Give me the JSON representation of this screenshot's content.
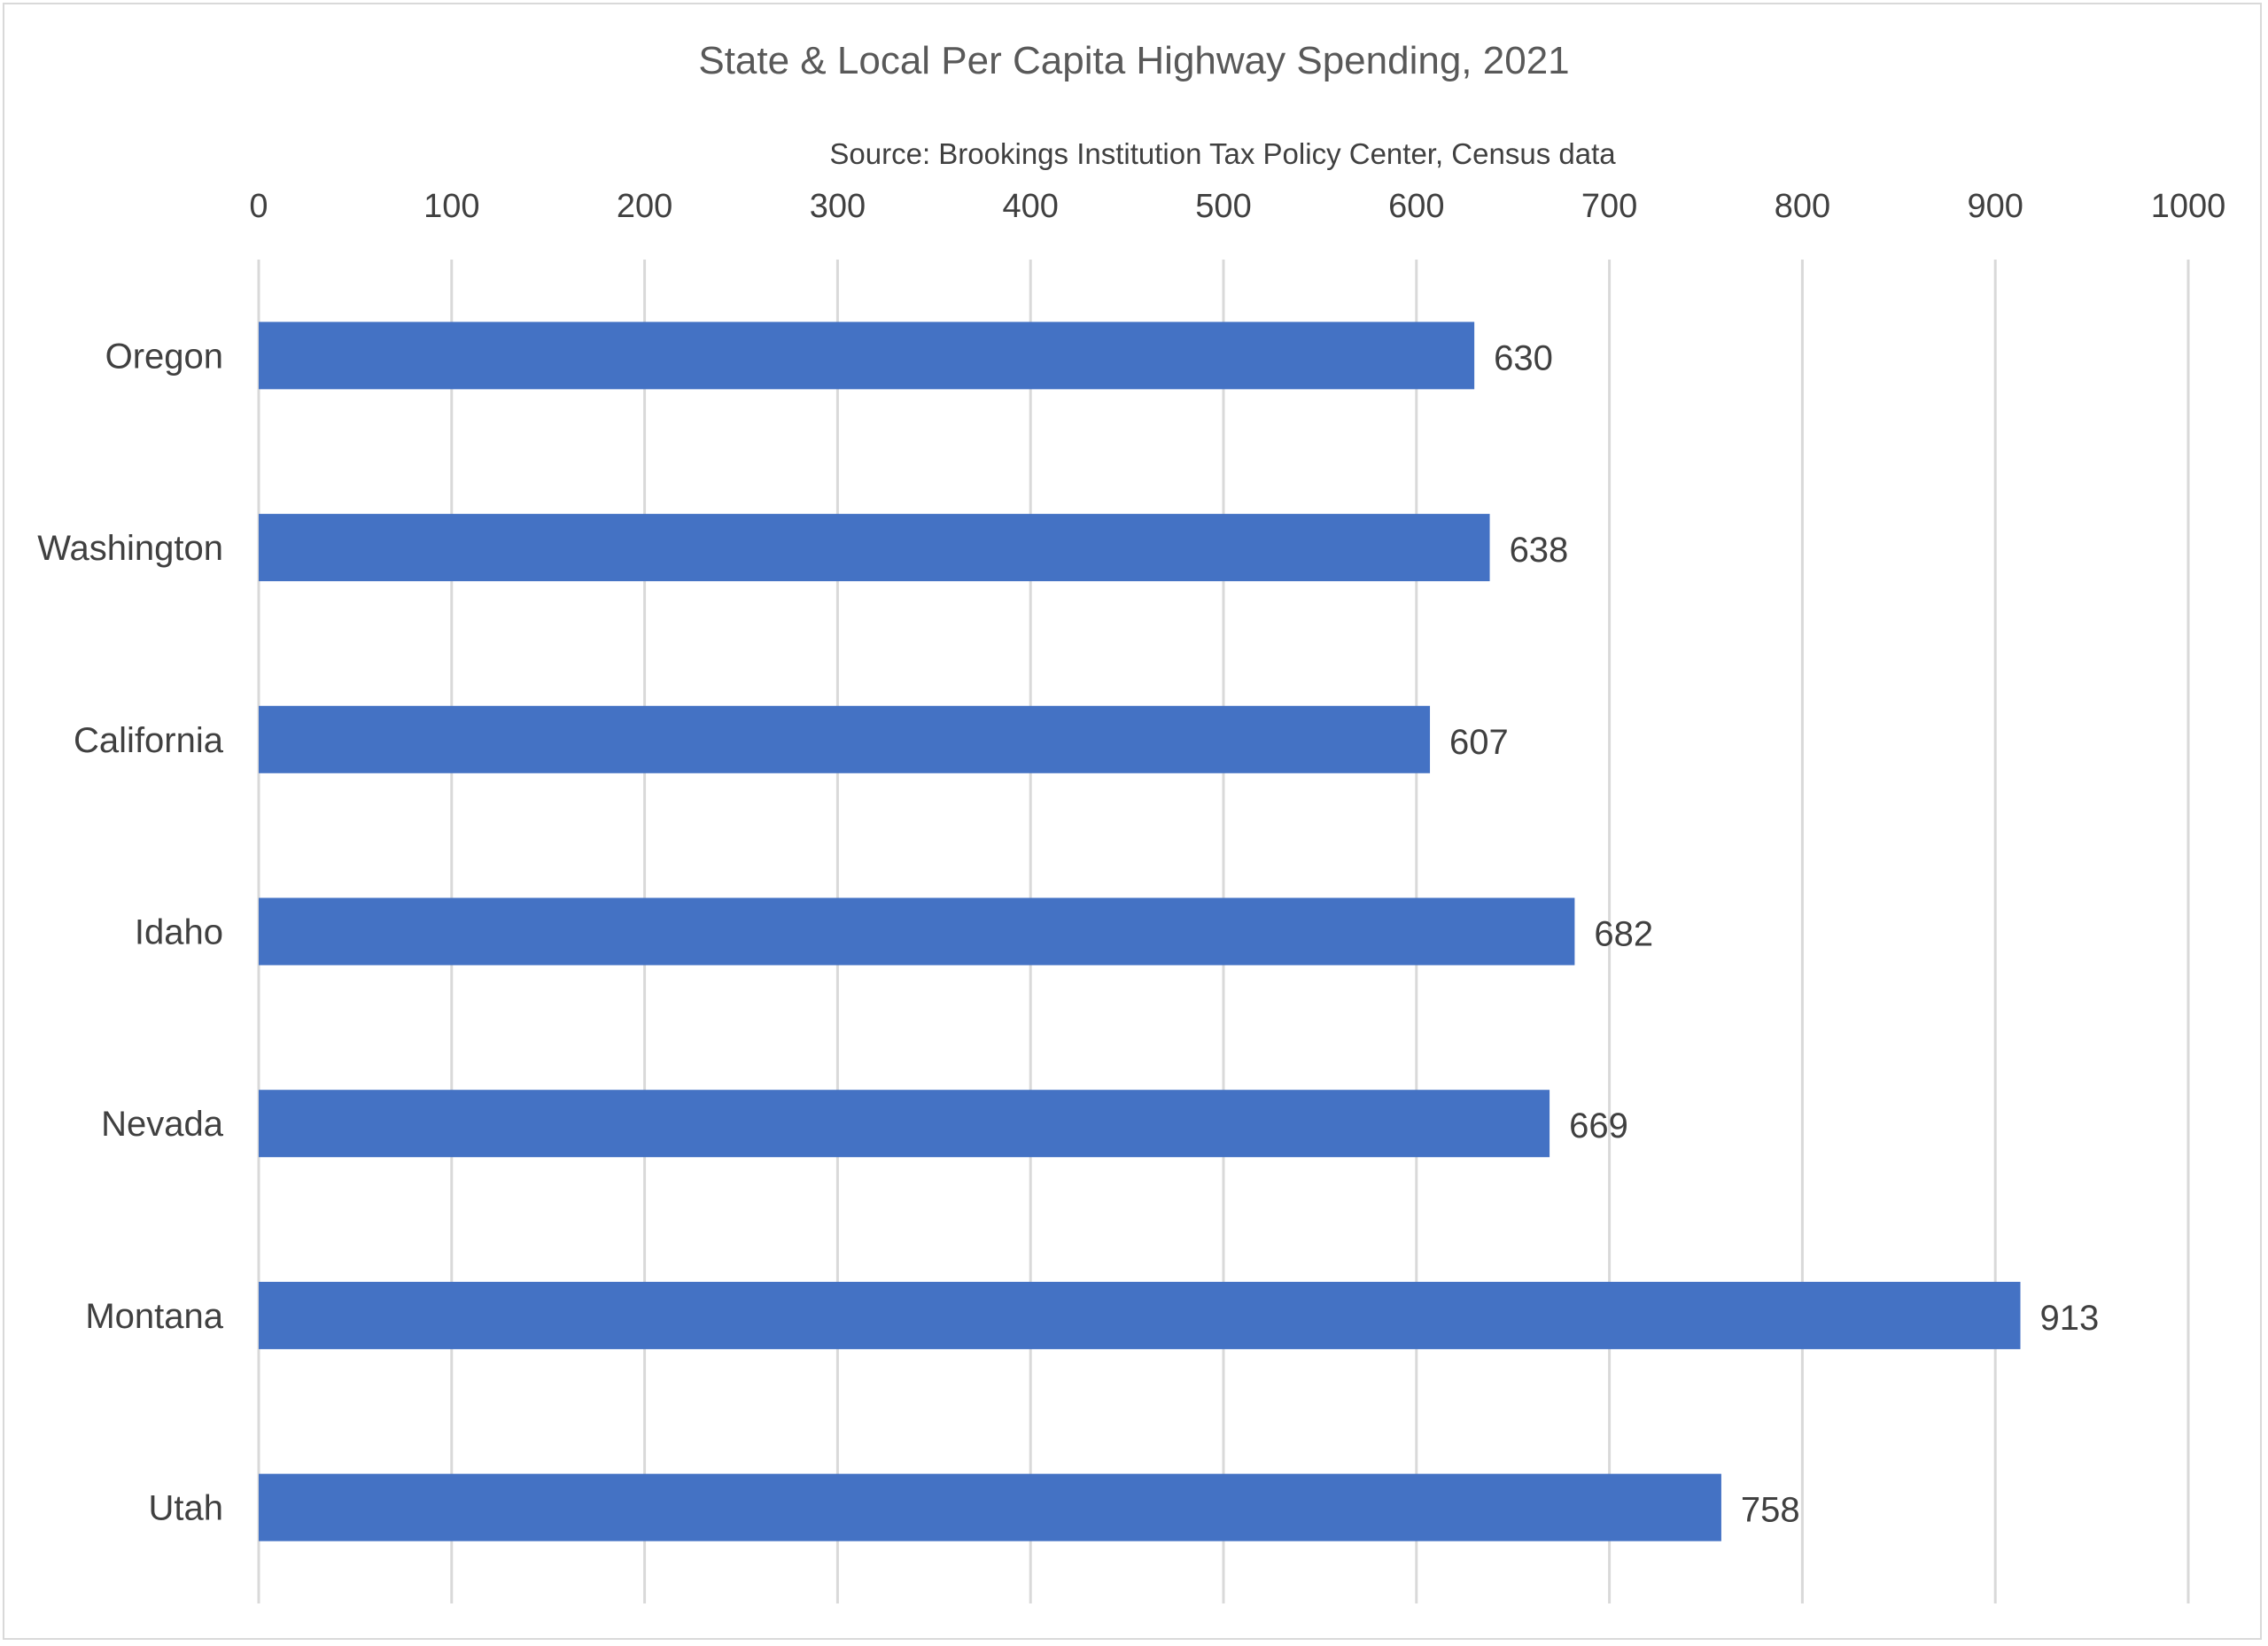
{
  "chart_data": {
    "type": "bar",
    "orientation": "horizontal",
    "title": "State & Local Per Capita Highway Spending, 2021",
    "subtitle": "Source:  Brookings Institution Tax Policy Center, Census data",
    "categories": [
      "Oregon",
      "Washington",
      "California",
      "Idaho",
      "Nevada",
      "Montana",
      "Utah"
    ],
    "values": [
      630,
      638,
      607,
      682,
      669,
      913,
      758
    ],
    "x_ticks": [
      "0",
      "100",
      "200",
      "300",
      "400",
      "500",
      "600",
      "700",
      "800",
      "900",
      "1000"
    ],
    "xlim": [
      0,
      1000
    ],
    "xlabel": "",
    "ylabel": "",
    "axis_position": "top",
    "grid": true,
    "data_labels": true,
    "bar_color": "#4472C4"
  }
}
